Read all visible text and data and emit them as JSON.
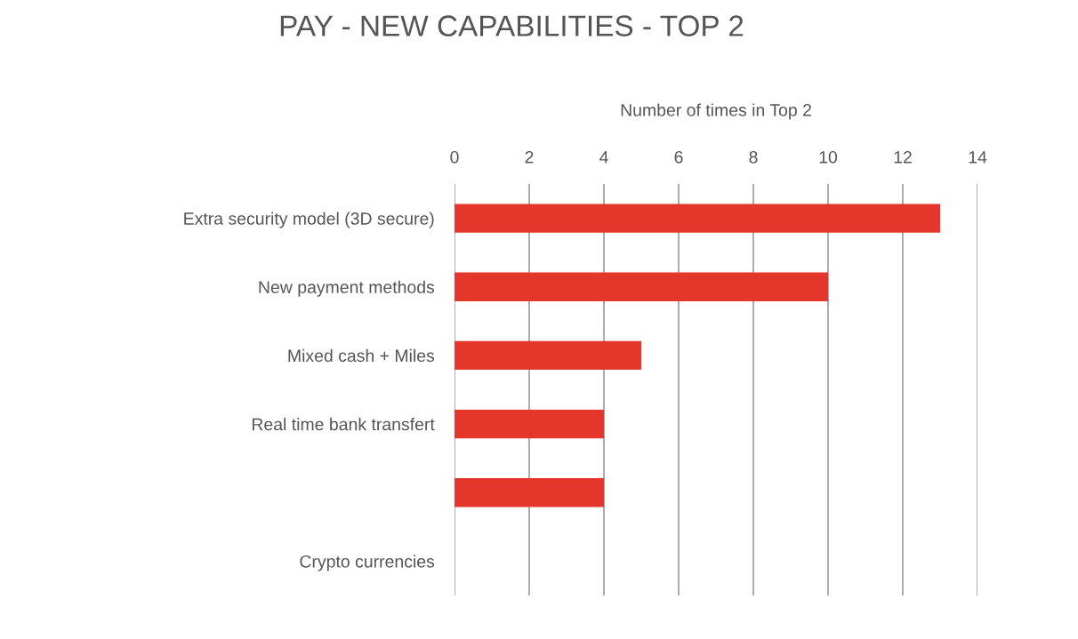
{
  "chart_data": {
    "type": "bar",
    "orientation": "horizontal",
    "title": "PAY - NEW CAPABILITIES - TOP 2",
    "xlabel": "Number of times in Top 2",
    "categories": [
      "Extra security model (3D secure)",
      "New payment methods",
      "Mixed cash + Miles",
      "Real time bank transfert",
      null,
      "Crypto currencies"
    ],
    "values": [
      13,
      10,
      5,
      4,
      4,
      0
    ],
    "color": "#e5362c",
    "xlim": [
      0,
      14
    ],
    "xticks": [
      0,
      2,
      4,
      6,
      8,
      10,
      12,
      14
    ],
    "grid": "x",
    "legend": false
  }
}
